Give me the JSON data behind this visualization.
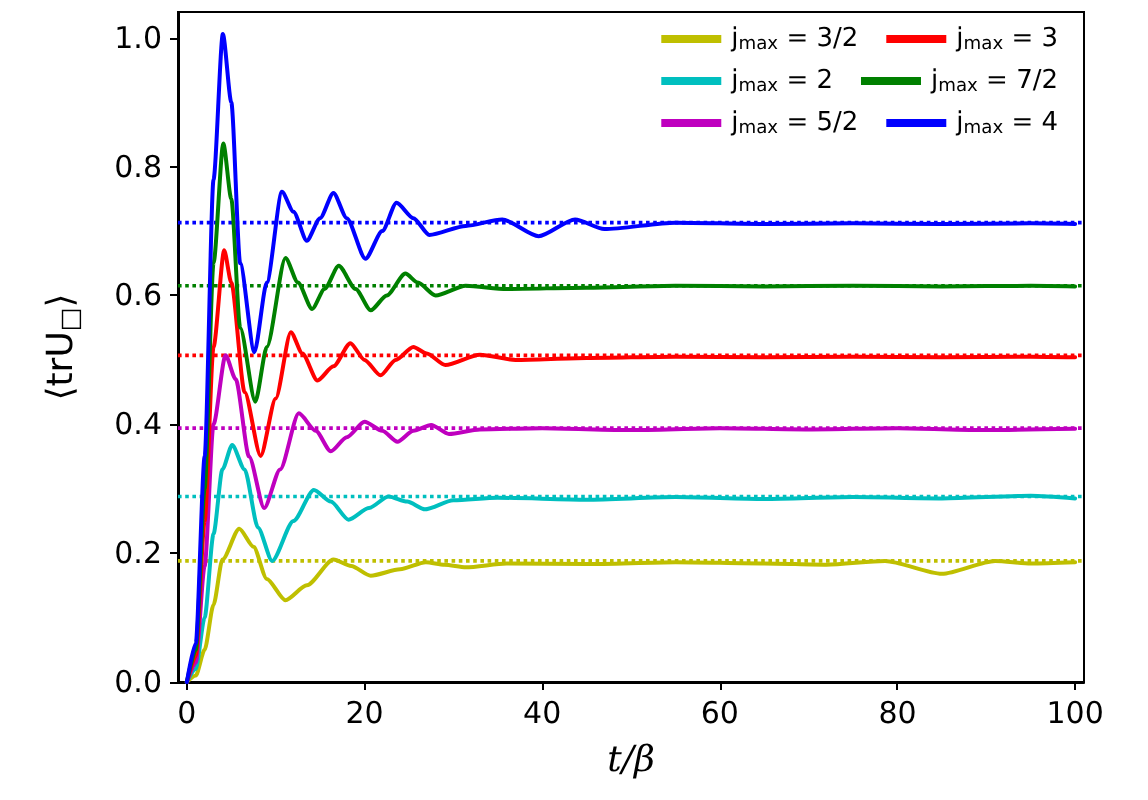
{
  "chart_data": {
    "type": "line",
    "xlabel": "t/β",
    "ylabel": "⟨trU$_{□}$⟩",
    "xlim": [
      -1,
      101
    ],
    "ylim": [
      0,
      1.04
    ],
    "xticks": [
      0,
      20,
      40,
      60,
      80,
      100
    ],
    "yticks": [
      {
        "value": 0,
        "label": "0.0"
      },
      {
        "value": 0.2,
        "label": "0.2"
      },
      {
        "value": 0.4,
        "label": "0.4"
      },
      {
        "value": 0.6,
        "label": "0.6"
      },
      {
        "value": 0.8,
        "label": "0.8"
      },
      {
        "value": 1,
        "label": "1.0"
      }
    ],
    "grid": false,
    "legend": "top right",
    "marker": "none",
    "line_style": "solid",
    "series": [
      {
        "name": "j$_{max}$ = 3/2",
        "color": "#bfbf00",
        "x": [
          0,
          1,
          2,
          3,
          4,
          5.9,
          7.5,
          9,
          11.1,
          13.5,
          16.5,
          18.5,
          20.7,
          24,
          26.9,
          29,
          31.4,
          36,
          45,
          55,
          65,
          72,
          78.6,
          85,
          91,
          95,
          100
        ],
        "values": [
          0,
          0.01,
          0.05,
          0.12,
          0.19,
          0.238,
          0.21,
          0.16,
          0.127,
          0.15,
          0.19,
          0.18,
          0.165,
          0.175,
          0.186,
          0.182,
          0.178,
          0.184,
          0.183,
          0.186,
          0.184,
          0.182,
          0.188,
          0.168,
          0.188,
          0.184,
          0.186
        ]
      },
      {
        "name": "j$_{max}$ = 2",
        "color": "#00bfbf",
        "x": [
          0,
          1,
          2,
          3,
          4,
          5.1,
          6.5,
          8,
          9.6,
          12,
          14.3,
          16.2,
          18.2,
          20.5,
          22.7,
          24.8,
          26.8,
          30,
          35,
          45,
          55,
          65,
          75,
          85,
          95,
          100
        ],
        "values": [
          0,
          0.02,
          0.1,
          0.23,
          0.33,
          0.368,
          0.33,
          0.24,
          0.188,
          0.25,
          0.298,
          0.28,
          0.252,
          0.27,
          0.288,
          0.28,
          0.268,
          0.282,
          0.286,
          0.283,
          0.287,
          0.284,
          0.287,
          0.285,
          0.289,
          0.285
        ]
      },
      {
        "name": "j$_{max}$ = 5/2",
        "color": "#bf00bf",
        "x": [
          0,
          1,
          2,
          3,
          4.35,
          5.5,
          7,
          8.7,
          10.5,
          12.6,
          14.5,
          16.2,
          18,
          20,
          22,
          23.7,
          25.5,
          27.5,
          29.5,
          33,
          40,
          50,
          60,
          70,
          80,
          90,
          100
        ],
        "values": [
          0,
          0.03,
          0.18,
          0.4,
          0.507,
          0.47,
          0.35,
          0.27,
          0.33,
          0.417,
          0.39,
          0.358,
          0.38,
          0.404,
          0.39,
          0.373,
          0.39,
          0.399,
          0.385,
          0.392,
          0.394,
          0.391,
          0.394,
          0.392,
          0.394,
          0.391,
          0.393
        ]
      },
      {
        "name": "j$_{max}$ = 3",
        "color": "#ff0000",
        "x": [
          0,
          1,
          2,
          3,
          4.2,
          5,
          6.5,
          8.3,
          10,
          11.7,
          13,
          14.7,
          16.5,
          18.4,
          20,
          21.8,
          23.5,
          25.5,
          27,
          29.1,
          33,
          37,
          45,
          55,
          65,
          75,
          85,
          95,
          100
        ],
        "values": [
          0,
          0.04,
          0.25,
          0.52,
          0.67,
          0.62,
          0.45,
          0.351,
          0.44,
          0.543,
          0.51,
          0.468,
          0.49,
          0.526,
          0.5,
          0.476,
          0.5,
          0.52,
          0.51,
          0.492,
          0.508,
          0.5,
          0.503,
          0.505,
          0.504,
          0.505,
          0.504,
          0.505,
          0.504
        ]
      },
      {
        "name": "j$_{max}$ = 7/2",
        "color": "#008000",
        "x": [
          0,
          1,
          2,
          3,
          4.1,
          5,
          6,
          7.7,
          9,
          11.1,
          12.5,
          14.1,
          15.5,
          17.1,
          19,
          20.7,
          22.5,
          24.6,
          26,
          28,
          31.4,
          36,
          45,
          55,
          65,
          75,
          85,
          95,
          100
        ],
        "values": [
          0,
          0.05,
          0.3,
          0.65,
          0.836,
          0.75,
          0.55,
          0.435,
          0.52,
          0.658,
          0.62,
          0.579,
          0.61,
          0.646,
          0.61,
          0.577,
          0.6,
          0.634,
          0.62,
          0.6,
          0.615,
          0.61,
          0.612,
          0.615,
          0.614,
          0.615,
          0.614,
          0.615,
          0.614
        ]
      },
      {
        "name": "j$_{max}$ = 4",
        "color": "#0000ff",
        "x": [
          0,
          1,
          2,
          3,
          4.05,
          5,
          6,
          7.6,
          9,
          10.7,
          12,
          13.5,
          15,
          16.5,
          18,
          20.1,
          22,
          23.6,
          25.5,
          27.3,
          31.4,
          35.5,
          39.6,
          43.7,
          47,
          55,
          65,
          75,
          85,
          95,
          100
        ],
        "values": [
          0,
          0.06,
          0.35,
          0.78,
          1.006,
          0.9,
          0.65,
          0.512,
          0.62,
          0.761,
          0.73,
          0.685,
          0.72,
          0.759,
          0.72,
          0.657,
          0.7,
          0.744,
          0.72,
          0.694,
          0.708,
          0.718,
          0.692,
          0.718,
          0.703,
          0.713,
          0.711,
          0.712,
          0.711,
          0.712,
          0.711
        ]
      }
    ],
    "ref_lines": [
      {
        "axis": "y",
        "value": 0.188,
        "color": "#bfbf00",
        "line_style": "dotted"
      },
      {
        "axis": "y",
        "value": 0.288,
        "color": "#00bfbf",
        "line_style": "dotted"
      },
      {
        "axis": "y",
        "value": 0.394,
        "color": "#bf00bf",
        "line_style": "dotted"
      },
      {
        "axis": "y",
        "value": 0.507,
        "color": "#ff0000",
        "line_style": "dotted"
      },
      {
        "axis": "y",
        "value": 0.615,
        "color": "#008000",
        "line_style": "dotted"
      },
      {
        "axis": "y",
        "value": 0.713,
        "color": "#0000ff",
        "line_style": "dotted"
      }
    ]
  }
}
